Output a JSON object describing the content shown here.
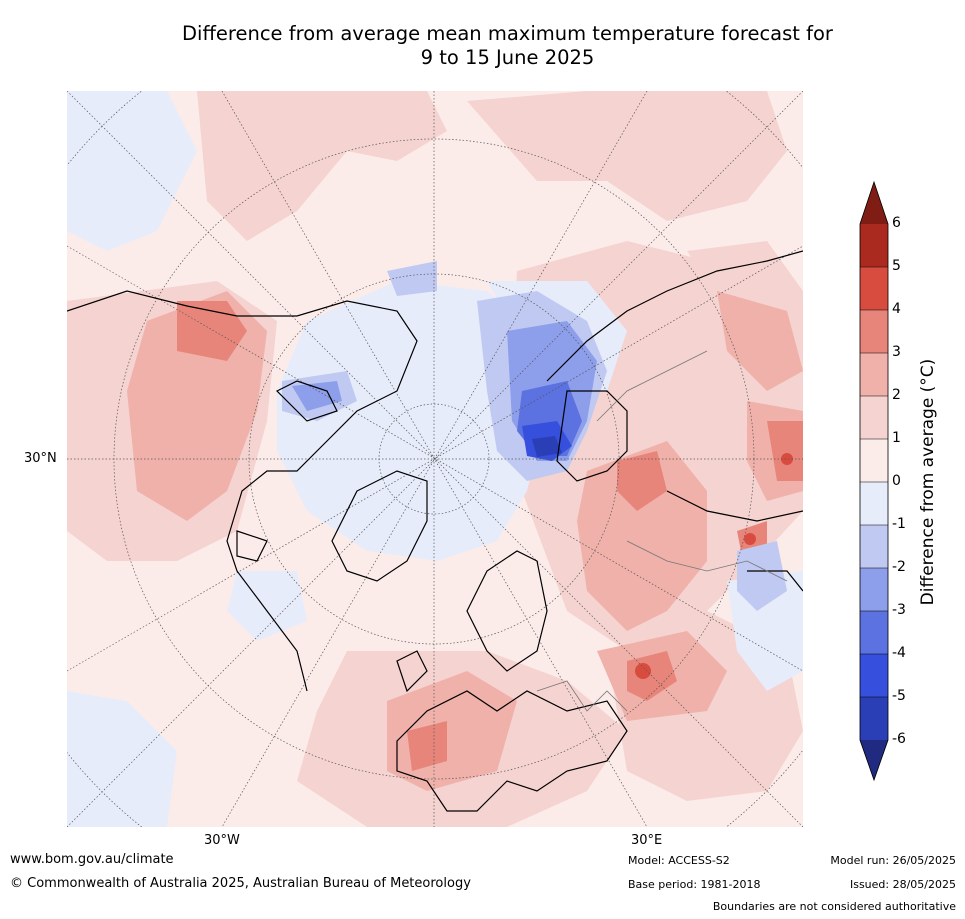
{
  "title": {
    "line1": "Difference from average mean maximum temperature forecast for",
    "line2": "9 to 15 June 2025"
  },
  "map": {
    "projection": "north-polar-stereographic",
    "lat_label": "30°N",
    "lon_labels": [
      "30°W",
      "30°E"
    ]
  },
  "colorbar": {
    "label": "Difference from average (°C)",
    "label_display": "Difference from average (°C)",
    "ticks": [
      "6",
      "5",
      "4",
      "3",
      "2",
      "1",
      "0",
      "-1",
      "-2",
      "-3",
      "-4",
      "-5",
      "-6"
    ],
    "colors": {
      "above6": "#7f1d14",
      "5to6": "#aa2a20",
      "4to5": "#d84c3f",
      "3to4": "#e8857b",
      "2to3": "#efb1aa",
      "1to2": "#f5d3d0",
      "0to1": "#fbecea",
      "m1to0": "#e7ecfb",
      "m2tom1": "#c0c9f1",
      "m3tom2": "#8d9eea",
      "m4tom3": "#5c72e0",
      "m5tom4": "#3650dd",
      "m6tom5": "#2a3fb6",
      "belowm6": "#1f2a80"
    }
  },
  "footer": {
    "url": "www.bom.gov.au/climate",
    "copyright": "© Commonwealth of Australia 2025, Australian Bureau of Meteorology",
    "model": "Model: ACCESS-S2",
    "base_period": "Base period: 1981-2018",
    "model_run": "Model run: 26/05/2025",
    "issued": "Issued: 28/05/2025",
    "disclaimer": "Boundaries are not considered authoritative"
  }
}
